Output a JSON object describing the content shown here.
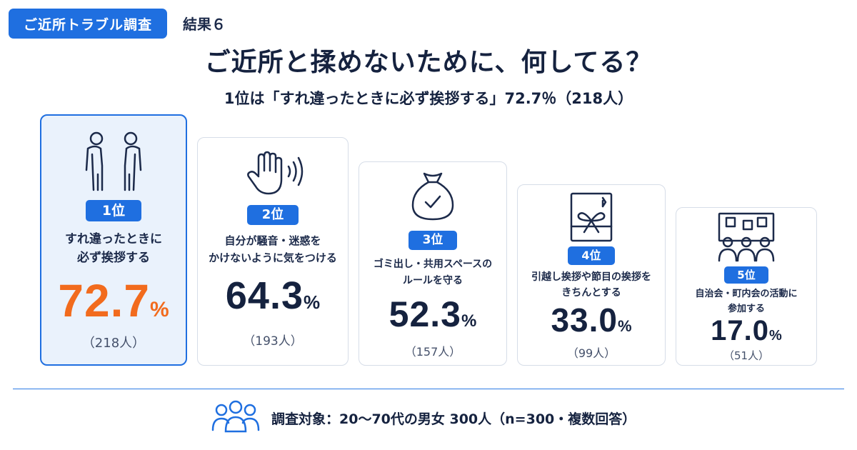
{
  "header": {
    "tag": "ご近所トラブル調査",
    "result_label": "結果６",
    "title": "ご近所と揉めないために、何してる？",
    "subtitle": "1位は「すれ違ったときに必ず挨拶する」72.7％（218人）"
  },
  "chart_data": {
    "type": "bar",
    "title": "ご近所と揉めないために、何してる？",
    "unit": "%",
    "categories": [
      "すれ違ったときに必ず挨拶する",
      "自分が騒音・迷惑をかけないように気をつける",
      "ゴミ出し・共用スペースのルールを守る",
      "引越し挨拶や節目の挨拶をきちんとする",
      "自治会・町内会の活動に参加する"
    ],
    "values": [
      72.7,
      64.3,
      52.3,
      33.0,
      17.0
    ],
    "counts": [
      218,
      193,
      157,
      99,
      51
    ]
  },
  "cards": [
    {
      "rank": "1位",
      "label": "すれ違ったときに\n必ず挨拶する",
      "value": "72.7",
      "pct": "%",
      "count": "（218人）",
      "icon": "bowing-people-icon"
    },
    {
      "rank": "2位",
      "label": "自分が騒音・迷惑を\nかけないように気をつける",
      "value": "64.3",
      "pct": "%",
      "count": "（193人）",
      "icon": "raised-hand-icon"
    },
    {
      "rank": "3位",
      "label": "ゴミ出し・共用スペースの\nルールを守る",
      "value": "52.3",
      "pct": "%",
      "count": "（157人）",
      "icon": "garbage-bag-icon"
    },
    {
      "rank": "4位",
      "label": "引越し挨拶や節目の挨拶を\nきちんとする",
      "value": "33.0",
      "pct": "%",
      "count": "（99人）",
      "icon": "gift-box-icon"
    },
    {
      "rank": "5位",
      "label": "自治会・町内会の活動に\n参加する",
      "value": "17.0",
      "pct": "%",
      "count": "（51人）",
      "icon": "community-board-icon"
    }
  ],
  "footer": {
    "text": "調査対象：20〜70代の男女 300人（n=300・複数回答）",
    "icon": "group-people-icon"
  },
  "colors": {
    "accent": "#1f6fe0",
    "highlight": "#f26b1d",
    "text": "#15223f"
  }
}
